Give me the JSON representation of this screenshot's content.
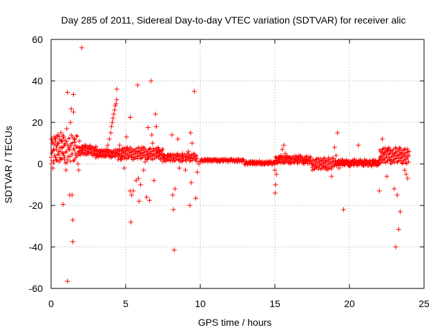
{
  "chart_data": {
    "type": "scatter",
    "title": "Day 285 of 2011, Sidereal Day-to-day VTEC variation (SDTVAR) for receiver alic",
    "xlabel": "GPS time / hours",
    "ylabel": "SDTVAR / TECUs",
    "xlim": [
      0,
      25
    ],
    "ylim": [
      -60,
      60
    ],
    "xticks": [
      0,
      5,
      10,
      15,
      20,
      25
    ],
    "yticks": [
      -60,
      -40,
      -20,
      0,
      20,
      40,
      60
    ],
    "xtick_labels": [
      "0",
      "5",
      "10",
      "15",
      "20",
      "25"
    ],
    "ytick_labels": [
      "-60",
      "-40",
      "-20",
      "0",
      "20",
      "40",
      "60"
    ],
    "grid": true,
    "legend": "none",
    "marker": "+",
    "color": "#ff0000",
    "series": [
      {
        "name": "SDTVAR",
        "points": [
          [
            0.05,
            12
          ],
          [
            0.1,
            10
          ],
          [
            0.12,
            -2
          ],
          [
            0.15,
            7
          ],
          [
            0.2,
            13
          ],
          [
            0.25,
            4
          ],
          [
            0.3,
            11
          ],
          [
            0.35,
            2
          ],
          [
            0.4,
            9
          ],
          [
            0.45,
            14
          ],
          [
            0.5,
            6
          ],
          [
            0.55,
            12
          ],
          [
            0.6,
            3
          ],
          [
            0.65,
            15
          ],
          [
            0.7,
            8
          ],
          [
            0.75,
            11
          ],
          [
            0.8,
            5
          ],
          [
            0.85,
            13
          ],
          [
            0.9,
            2
          ],
          [
            0.95,
            10
          ],
          [
            0.8,
            -19.5
          ],
          [
            1.0,
            -3
          ],
          [
            1.05,
            17
          ],
          [
            1.1,
            34.5
          ],
          [
            1.1,
            -56.5
          ],
          [
            1.2,
            8
          ],
          [
            1.25,
            -15
          ],
          [
            1.3,
            20
          ],
          [
            1.35,
            26.5
          ],
          [
            1.4,
            -15
          ],
          [
            1.45,
            -27
          ],
          [
            1.45,
            -37.5
          ],
          [
            1.5,
            33.5
          ],
          [
            1.5,
            25
          ],
          [
            1.55,
            12
          ],
          [
            1.6,
            9
          ],
          [
            1.7,
            4
          ],
          [
            1.8,
            0
          ],
          [
            1.85,
            -3
          ],
          [
            1.9,
            11
          ],
          [
            2.05,
            56
          ],
          [
            2.1,
            7
          ],
          [
            2.3,
            9
          ],
          [
            2.5,
            5
          ],
          [
            2.7,
            8
          ],
          [
            2.9,
            6
          ],
          [
            3.1,
            7
          ],
          [
            3.3,
            5
          ],
          [
            3.5,
            6
          ],
          [
            3.7,
            7
          ],
          [
            3.8,
            9
          ],
          [
            3.9,
            12
          ],
          [
            4.0,
            15
          ],
          [
            4.05,
            18
          ],
          [
            4.1,
            20
          ],
          [
            4.15,
            22
          ],
          [
            4.2,
            24
          ],
          [
            4.25,
            26
          ],
          [
            4.3,
            28
          ],
          [
            4.35,
            29
          ],
          [
            4.4,
            36
          ],
          [
            4.4,
            31
          ],
          [
            4.5,
            5
          ],
          [
            4.6,
            9
          ],
          [
            4.7,
            2
          ],
          [
            4.8,
            6
          ],
          [
            4.9,
            -2
          ],
          [
            5.0,
            4
          ],
          [
            5.05,
            13
          ],
          [
            5.1,
            8
          ],
          [
            5.3,
            22.5
          ],
          [
            5.3,
            -13
          ],
          [
            5.35,
            -28
          ],
          [
            5.4,
            -15
          ],
          [
            5.5,
            -13
          ],
          [
            5.6,
            6
          ],
          [
            5.7,
            -8
          ],
          [
            5.8,
            38
          ],
          [
            5.85,
            -7
          ],
          [
            5.9,
            -18
          ],
          [
            6.0,
            -10
          ],
          [
            6.1,
            8
          ],
          [
            6.2,
            -3
          ],
          [
            6.3,
            1
          ],
          [
            6.4,
            -16
          ],
          [
            6.5,
            17.5
          ],
          [
            6.5,
            3
          ],
          [
            6.6,
            -17.5
          ],
          [
            6.7,
            40
          ],
          [
            6.75,
            14
          ],
          [
            6.8,
            10
          ],
          [
            6.9,
            -8
          ],
          [
            7.0,
            24
          ],
          [
            7.05,
            18
          ],
          [
            7.2,
            6
          ],
          [
            7.4,
            5
          ],
          [
            7.6,
            4
          ],
          [
            7.8,
            3
          ],
          [
            8.0,
            4
          ],
          [
            8.1,
            14
          ],
          [
            8.15,
            -15
          ],
          [
            8.2,
            -22
          ],
          [
            8.25,
            -41.5
          ],
          [
            8.3,
            -12
          ],
          [
            8.5,
            12
          ],
          [
            8.6,
            -2
          ],
          [
            8.8,
            5
          ],
          [
            9.0,
            -3
          ],
          [
            9.2,
            6
          ],
          [
            9.3,
            -20
          ],
          [
            9.35,
            15
          ],
          [
            9.4,
            -9
          ],
          [
            9.45,
            10
          ],
          [
            9.6,
            35
          ],
          [
            9.7,
            -16.5
          ],
          [
            9.8,
            -4
          ],
          [
            9.9,
            0
          ],
          [
            10.0,
            1
          ],
          [
            10.3,
            2
          ],
          [
            10.6,
            2
          ],
          [
            11,
            2
          ],
          [
            11.5,
            2
          ],
          [
            12,
            1.5
          ],
          [
            12.5,
            1
          ],
          [
            13,
            0
          ],
          [
            13.5,
            1
          ],
          [
            14,
            0
          ],
          [
            14.5,
            0.5
          ],
          [
            14.9,
            1
          ],
          [
            15.0,
            -3
          ],
          [
            15.02,
            -14
          ],
          [
            15.05,
            -10
          ],
          [
            15.1,
            -5
          ],
          [
            15.2,
            2
          ],
          [
            15.4,
            4
          ],
          [
            15.5,
            7
          ],
          [
            15.6,
            9
          ],
          [
            15.7,
            5
          ],
          [
            16.0,
            3
          ],
          [
            16.3,
            1
          ],
          [
            16.6,
            4
          ],
          [
            17.0,
            1
          ],
          [
            17.5,
            0
          ],
          [
            18.0,
            0
          ],
          [
            18.3,
            -2
          ],
          [
            18.6,
            3
          ],
          [
            18.8,
            -6
          ],
          [
            19.0,
            8
          ],
          [
            19.1,
            4
          ],
          [
            19.2,
            15
          ],
          [
            19.3,
            -2
          ],
          [
            19.5,
            2
          ],
          [
            19.6,
            -22
          ],
          [
            19.8,
            1
          ],
          [
            20.0,
            -1
          ],
          [
            20.3,
            2
          ],
          [
            20.6,
            9
          ],
          [
            21.0,
            2
          ],
          [
            21.5,
            -1
          ],
          [
            21.8,
            1
          ],
          [
            22.0,
            -13
          ],
          [
            22.1,
            3
          ],
          [
            22.2,
            12
          ],
          [
            22.3,
            5
          ],
          [
            22.5,
            -6
          ],
          [
            22.6,
            7
          ],
          [
            22.8,
            2
          ],
          [
            23.0,
            -12
          ],
          [
            23.1,
            -40
          ],
          [
            23.2,
            -15
          ],
          [
            23.3,
            -31.5
          ],
          [
            23.4,
            -23
          ],
          [
            23.5,
            5
          ],
          [
            23.7,
            -3
          ],
          [
            23.8,
            -5
          ],
          [
            23.9,
            -7
          ]
        ]
      }
    ],
    "bands": [
      {
        "from": 0.0,
        "to": 1.8,
        "low": 0,
        "high": 14,
        "step": 0.05
      },
      {
        "from": 1.8,
        "to": 3.0,
        "low": 4,
        "high": 9,
        "step": 0.05
      },
      {
        "from": 3.0,
        "to": 4.5,
        "low": 3,
        "high": 7,
        "step": 0.05
      },
      {
        "from": 4.5,
        "to": 7.5,
        "low": 2,
        "high": 8,
        "step": 0.05
      },
      {
        "from": 7.5,
        "to": 9.8,
        "low": 1,
        "high": 5,
        "step": 0.06
      },
      {
        "from": 10.0,
        "to": 13.0,
        "low": 1,
        "high": 2.5,
        "step": 0.06
      },
      {
        "from": 13.0,
        "to": 15.0,
        "low": -0.5,
        "high": 1.5,
        "step": 0.06
      },
      {
        "from": 15.0,
        "to": 17.5,
        "low": 0,
        "high": 4,
        "step": 0.05
      },
      {
        "from": 17.5,
        "to": 19.0,
        "low": -3,
        "high": 3,
        "step": 0.05
      },
      {
        "from": 19.0,
        "to": 22.0,
        "low": -1,
        "high": 2,
        "step": 0.05
      },
      {
        "from": 22.0,
        "to": 24.0,
        "low": 0,
        "high": 8,
        "step": 0.04
      }
    ]
  }
}
